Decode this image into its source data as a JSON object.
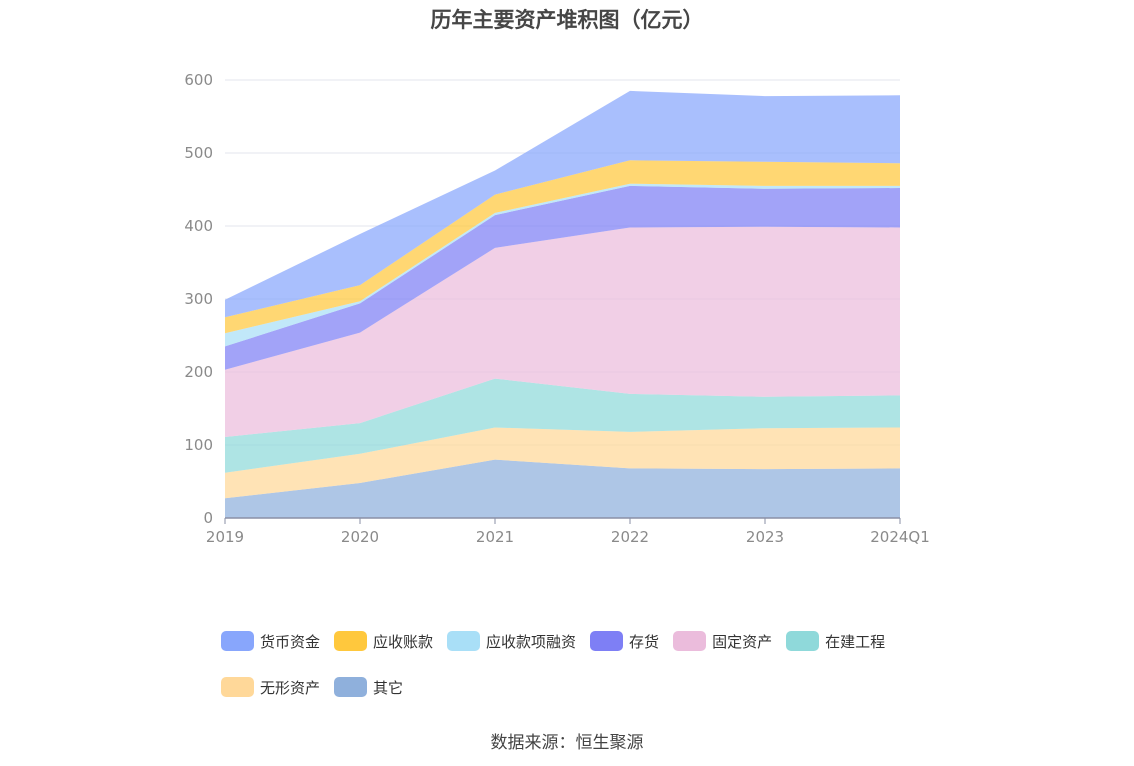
{
  "chart_data": {
    "type": "area",
    "stacked": true,
    "title": "历年主要资产堆积图（亿元）",
    "categories": [
      "2019",
      "2020",
      "2021",
      "2022",
      "2023",
      "2024Q1"
    ],
    "ylim": [
      0,
      600
    ],
    "yticks": [
      0,
      100,
      200,
      300,
      400,
      500,
      600
    ],
    "grid": true,
    "legend_position": "bottom",
    "series": [
      {
        "name": "其它",
        "color": "#8fb0dc",
        "values": [
          27,
          48,
          80,
          68,
          67,
          68
        ]
      },
      {
        "name": "无形资产",
        "color": "#ffd899",
        "values": [
          35,
          40,
          44,
          50,
          56,
          56
        ]
      },
      {
        "name": "在建工程",
        "color": "#8fd9da",
        "values": [
          49,
          42,
          67,
          52,
          43,
          44
        ]
      },
      {
        "name": "固定资产",
        "color": "#ebbcdc",
        "values": [
          92,
          124,
          179,
          228,
          233,
          230
        ]
      },
      {
        "name": "存货",
        "color": "#7e7ff5",
        "values": [
          32,
          40,
          45,
          57,
          52,
          54
        ]
      },
      {
        "name": "应收款项融资",
        "color": "#a9dff7",
        "values": [
          18,
          3,
          3,
          3,
          4,
          3
        ]
      },
      {
        "name": "应收账款",
        "color": "#ffc83d",
        "values": [
          22,
          22,
          25,
          32,
          33,
          31
        ]
      },
      {
        "name": "货币资金",
        "color": "#88a6fc",
        "values": [
          24,
          70,
          33,
          95,
          90,
          93
        ]
      }
    ]
  },
  "legend": {
    "rows": [
      [
        "货币资金",
        "应收账款",
        "应收款项融资",
        "存货",
        "固定资产",
        "在建工程"
      ],
      [
        "无形资产",
        "其它"
      ]
    ]
  },
  "source": "数据来源：恒生聚源"
}
